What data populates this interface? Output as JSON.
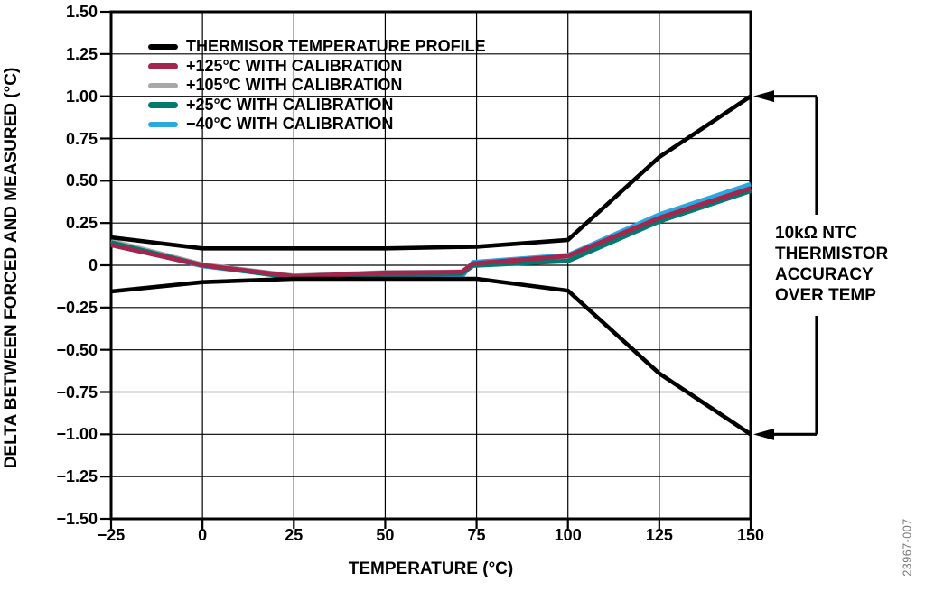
{
  "figure": {
    "number": "23967-007"
  },
  "annotation": {
    "lines": [
      "10kΩ NTC",
      "THERMISTOR",
      "ACCURACY",
      "OVER TEMP"
    ]
  },
  "chart_data": {
    "type": "line",
    "title": "",
    "xlabel": "TEMPERATURE (°C)",
    "ylabel": "DELTA BETWEEN FORCED AND MEASURED (°C)",
    "xlim": [
      -25,
      150
    ],
    "ylim": [
      -1.5,
      1.5
    ],
    "grid": true,
    "legend_position": "top-left",
    "x_ticks": {
      "values": [
        -25,
        0,
        25,
        50,
        75,
        100,
        125,
        150
      ],
      "labels": [
        "−25",
        "0",
        "25",
        "50",
        "75",
        "100",
        "125",
        "150"
      ]
    },
    "y_ticks": {
      "values": [
        1.5,
        1.25,
        1.0,
        0.75,
        0.5,
        0.25,
        0,
        -0.25,
        -0.5,
        -0.75,
        -1.0,
        -1.25,
        -1.5
      ],
      "labels": [
        "1.50",
        "1.25",
        "1.00",
        "0.75",
        "0.50",
        "0.25",
        "0",
        "−0.25",
        "−0.50",
        "−0.75",
        "−1.00",
        "−1.25",
        "−1.50"
      ]
    },
    "series": [
      {
        "name": "THERMISOR TEMPERATURE PROFILE",
        "color": "#000000",
        "branches": [
          {
            "x": [
              -25,
              0,
              25,
              50,
              75,
              100,
              125,
              150
            ],
            "y": [
              0.165,
              0.1,
              0.1,
              0.1,
              0.11,
              0.15,
              0.64,
              1.0
            ]
          },
          {
            "x": [
              -25,
              0,
              25,
              50,
              75,
              100,
              125,
              150
            ],
            "y": [
              -0.155,
              -0.1,
              -0.08,
              -0.08,
              -0.08,
              -0.15,
              -0.64,
              -1.0
            ]
          }
        ]
      },
      {
        "name": "+125°C WITH CALIBRATION",
        "color": "#A3264E",
        "branches": [
          {
            "x": [
              -25,
              0,
              25,
              50,
              65,
              71,
              74,
              100,
              125,
              150
            ],
            "y": [
              0.12,
              0.0,
              -0.065,
              -0.045,
              -0.042,
              -0.04,
              0.01,
              0.055,
              0.28,
              0.455
            ]
          }
        ]
      },
      {
        "name": "+105°C WITH CALIBRATION",
        "color": "#A8A8A8",
        "branches": [
          {
            "x": [
              -25,
              0,
              25,
              50,
              65,
              71,
              74,
              100,
              125,
              150
            ],
            "y": [
              0.145,
              0.005,
              -0.062,
              -0.042,
              -0.04,
              -0.038,
              0.012,
              0.045,
              0.275,
              0.45
            ]
          }
        ]
      },
      {
        "name": "+25°C WITH CALIBRATION",
        "color": "#00796E",
        "branches": [
          {
            "x": [
              -25,
              0,
              25,
              50,
              65,
              71,
              74,
              100,
              125,
              150
            ],
            "y": [
              0.135,
              0.0,
              -0.075,
              -0.055,
              -0.052,
              -0.05,
              -0.002,
              0.025,
              0.26,
              0.44
            ]
          }
        ]
      },
      {
        "name": "−40°C WITH CALIBRATION",
        "color": "#29A9E0",
        "branches": [
          {
            "x": [
              -25,
              0,
              25,
              50,
              65,
              71,
              74,
              100,
              125,
              150
            ],
            "y": [
              0.13,
              -0.005,
              -0.07,
              -0.06,
              -0.066,
              -0.068,
              0.018,
              0.06,
              0.3,
              0.48
            ]
          }
        ]
      }
    ]
  }
}
